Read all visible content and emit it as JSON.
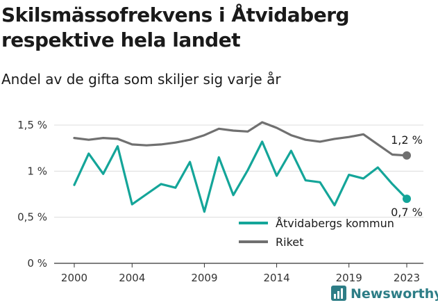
{
  "title": "Skilsmässofrekvens i Åtvidaberg respektive hela landet",
  "subtitle": "Andel av de gifta som skiljer sig varje år",
  "brand": "Newsworthy",
  "colors": {
    "kommun": "#14a599",
    "riket": "#707070",
    "brand": "#2d7d86"
  },
  "chart_data": {
    "type": "line",
    "x": [
      2000,
      2001,
      2002,
      2003,
      2004,
      2005,
      2006,
      2007,
      2008,
      2009,
      2010,
      2011,
      2012,
      2013,
      2014,
      2015,
      2016,
      2017,
      2018,
      2019,
      2020,
      2021,
      2022,
      2023
    ],
    "series": [
      {
        "name": "Åtvidabergs kommun",
        "values": [
          0.85,
          1.19,
          0.97,
          1.27,
          0.64,
          0.75,
          0.86,
          0.82,
          1.1,
          0.56,
          1.15,
          0.74,
          1.01,
          1.32,
          0.95,
          1.22,
          0.9,
          0.88,
          0.63,
          0.96,
          0.92,
          1.04,
          0.86,
          0.7
        ],
        "end_label": "0,7 %"
      },
      {
        "name": "Riket",
        "values": [
          1.36,
          1.34,
          1.36,
          1.35,
          1.29,
          1.28,
          1.29,
          1.31,
          1.34,
          1.39,
          1.46,
          1.44,
          1.43,
          1.53,
          1.47,
          1.39,
          1.34,
          1.32,
          1.35,
          1.37,
          1.4,
          1.29,
          1.18,
          1.17
        ],
        "end_label": "1,2 %"
      }
    ],
    "x_ticks": [
      2000,
      2004,
      2009,
      2014,
      2019,
      2023
    ],
    "y_ticks": [
      {
        "value": 0,
        "label": "0 %"
      },
      {
        "value": 0.5,
        "label": "0,5 %"
      },
      {
        "value": 1.0,
        "label": "1 %"
      },
      {
        "value": 1.5,
        "label": "1,5 %"
      }
    ],
    "ylim": [
      0,
      1.5
    ],
    "xlim": [
      2000,
      2023
    ],
    "grid": "horizontal",
    "legend_position": "bottom-right"
  }
}
